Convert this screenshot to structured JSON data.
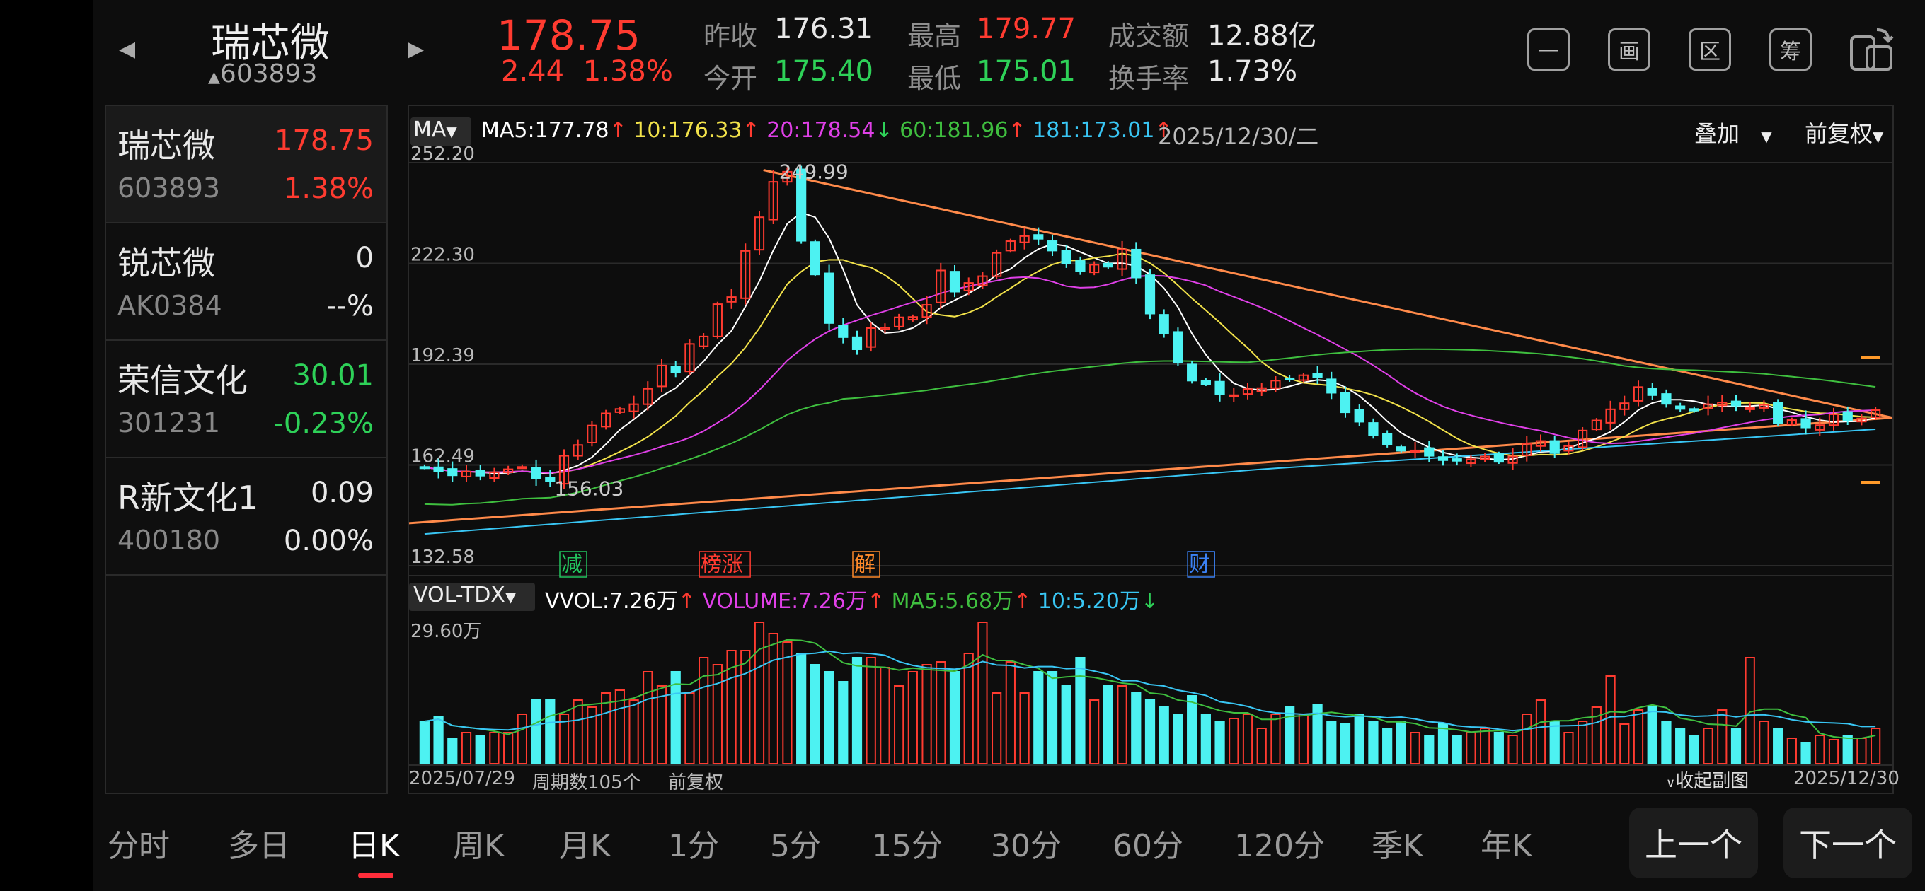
{
  "header": {
    "name": "瑞芯微",
    "code": "603893",
    "price": "178.75",
    "change": "2.44",
    "change_pct": "1.38%",
    "prev_close_label": "昨收",
    "prev_close": "176.31",
    "open_label": "今开",
    "open": "175.40",
    "high_label": "最高",
    "high": "179.77",
    "low_label": "最低",
    "low": "175.01",
    "amount_label": "成交额",
    "amount": "12.88亿",
    "turnover_label": "换手率",
    "turnover": "1.73%",
    "toolbar_icons": [
      "minus-box-icon",
      "screen-icon",
      "region-icon",
      "chip-icon",
      "rotate-icon"
    ],
    "toolbar_labels": [
      "一",
      "画",
      "区",
      "筹",
      ""
    ]
  },
  "watchlist": [
    {
      "name": "瑞芯微",
      "code": "603893",
      "price": "178.75",
      "pct": "1.38%",
      "trend": "up"
    },
    {
      "name": "锐芯微",
      "code": "AK0384",
      "price": "0",
      "pct": "--%",
      "trend": "flat"
    },
    {
      "name": "荣信文化",
      "code": "301231",
      "price": "30.01",
      "pct": "-0.23%",
      "trend": "down"
    },
    {
      "name": "R新文化1",
      "code": "400180",
      "price": "0.09",
      "pct": "0.00%",
      "trend": "flat"
    }
  ],
  "main_chart": {
    "indicator": "MA",
    "ma5": "MA5:177.78",
    "ma10": "10:176.33",
    "ma20": "20:178.54",
    "ma60": "60:181.96",
    "ma181": "181:173.01",
    "date": "2025/12/30/二",
    "overlay_label": "叠加",
    "adjust_label": "前复权",
    "y_ticks": [
      "252.20",
      "222.30",
      "192.39",
      "162.49",
      "132.58"
    ],
    "peak_label": "249.99",
    "low_label": "156.03",
    "event_tags": [
      "减",
      "榜涨",
      "解",
      "财"
    ],
    "colors": {
      "ma5": "#ffffff",
      "ma10": "#f2e24a",
      "ma20": "#e040e8",
      "ma60": "#3fbf3f",
      "ma181": "#39c6f4",
      "trend": "#ff8a4a",
      "up": "#ff3b30",
      "down": "#4df2f2"
    }
  },
  "volume_chart": {
    "indicator": "VOL-TDX",
    "vvol": "VVOL:7.26万",
    "volume": "VOLUME:7.26万",
    "ma5": "MA5:5.68万",
    "ma10": "10:5.20万",
    "max_label": "29.60万",
    "start_date": "2025/07/29",
    "end_date": "2025/12/30",
    "period_count": "周期数105个",
    "adjust": "前复权",
    "collapse": "收起副图"
  },
  "chart_data": {
    "type": "candlestick",
    "ylim": [
      132.58,
      252.2
    ],
    "close": [
      161.8,
      160.6,
      159.4,
      160.5,
      159.3,
      160.3,
      161.2,
      161.9,
      158.4,
      157.6,
      165.2,
      168.4,
      174.2,
      177.8,
      179.1,
      180.5,
      185.1,
      192.0,
      189.9,
      198.4,
      200.6,
      210.2,
      212.3,
      226.0,
      236.0,
      246.5,
      249.5,
      229.0,
      219.0,
      204.6,
      200.4,
      196.8,
      203.1,
      203.2,
      206.3,
      206.4,
      210.0,
      220.2,
      213.9,
      216.5,
      218.5,
      225.4,
      228.9,
      230.4,
      229.6,
      226.1,
      222.3,
      220.0,
      221.9,
      221.3,
      226.4,
      218.1,
      207.4,
      201.6,
      193.0,
      187.5,
      186.5,
      183.4,
      183.2,
      185.0,
      185.3,
      187.5,
      188.0,
      189.1,
      188.6,
      183.9,
      178.1,
      175.3,
      171.4,
      168.5,
      166.7,
      166.8,
      165.2,
      163.9,
      163.7,
      164.2,
      165.0,
      163.4,
      165.0,
      168.8,
      169.6,
      166.0,
      168.1,
      172.7,
      175.7,
      179.0,
      180.8,
      185.6,
      183.2,
      180.6,
      179.1,
      178.6,
      180.5,
      181.0,
      180.1,
      179.4,
      180.3,
      174.9,
      175.8,
      173.6,
      174.3,
      177.5,
      175.7,
      176.3,
      178.75
    ],
    "volume_ratio": [
      0.3,
      0.33,
      0.18,
      0.22,
      0.2,
      0.22,
      0.22,
      0.35,
      0.45,
      0.45,
      0.35,
      0.45,
      0.4,
      0.5,
      0.52,
      0.45,
      0.65,
      0.55,
      0.65,
      0.5,
      0.75,
      0.7,
      0.8,
      0.8,
      1.0,
      0.92,
      0.86,
      0.78,
      0.7,
      0.65,
      0.58,
      0.75,
      0.75,
      0.68,
      0.55,
      0.65,
      0.7,
      0.72,
      0.65,
      0.78,
      1.0,
      0.5,
      0.72,
      0.5,
      0.65,
      0.65,
      0.55,
      0.75,
      0.45,
      0.55,
      0.55,
      0.5,
      0.45,
      0.4,
      0.35,
      0.48,
      0.35,
      0.3,
      0.32,
      0.35,
      0.25,
      0.35,
      0.4,
      0.35,
      0.42,
      0.3,
      0.28,
      0.35,
      0.3,
      0.25,
      0.3,
      0.22,
      0.2,
      0.28,
      0.2,
      0.22,
      0.25,
      0.22,
      0.2,
      0.35,
      0.45,
      0.3,
      0.22,
      0.3,
      0.4,
      0.62,
      0.28,
      0.38,
      0.4,
      0.3,
      0.25,
      0.2,
      0.25,
      0.38,
      0.25,
      0.75,
      0.3,
      0.25,
      0.18,
      0.15,
      0.2,
      0.17,
      0.2,
      0.18,
      0.25
    ],
    "xlabel": "",
    "ylabel": ""
  },
  "tabs": [
    "分时",
    "多日",
    "日K",
    "周K",
    "月K",
    "1分",
    "5分",
    "15分",
    "30分",
    "60分",
    "120分",
    "季K",
    "年K"
  ],
  "active_tab": "日K",
  "nav": {
    "prev": "上一个",
    "next": "下一个"
  }
}
